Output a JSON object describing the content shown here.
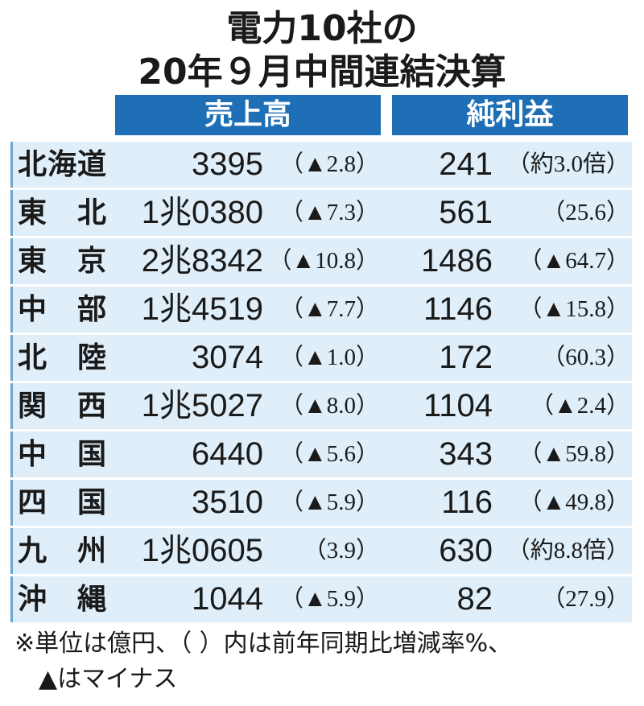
{
  "title": {
    "lines": [
      "電力10社の",
      "20年９月中間連結決算"
    ]
  },
  "table": {
    "columns": [
      "売上高",
      "純利益"
    ],
    "rows": [
      [
        "北海道",
        "3395",
        "（▲2.8）",
        "241",
        "（約3.0倍）"
      ],
      [
        "東北",
        "1兆0380",
        "（▲7.3）",
        "561",
        "（25.6）"
      ],
      [
        "東京",
        "2兆8342",
        "（▲10.8）",
        "1486",
        "（▲64.7）"
      ],
      [
        "中部",
        "1兆4519",
        "（▲7.7）",
        "1146",
        "（▲15.8）"
      ],
      [
        "北陸",
        "3074",
        "（▲1.0）",
        "172",
        "（60.3）"
      ],
      [
        "関西",
        "1兆5027",
        "（▲8.0）",
        "1104",
        "（▲2.4）"
      ],
      [
        "中国",
        "6440",
        "（▲5.6）",
        "343",
        "（▲59.8）"
      ],
      [
        "四国",
        "3510",
        "（▲5.9）",
        "116",
        "（▲49.8）"
      ],
      [
        "九州",
        "1兆0605",
        "（3.9）",
        "630",
        "（約8.8倍）"
      ],
      [
        "沖縄",
        "1044",
        "（▲5.9）",
        "82",
        "（27.9）"
      ]
    ]
  },
  "footnote": {
    "lines": [
      "※単位は億円、（ ）内は前年同期比増減率%、",
      "▲はマイナス"
    ]
  }
}
